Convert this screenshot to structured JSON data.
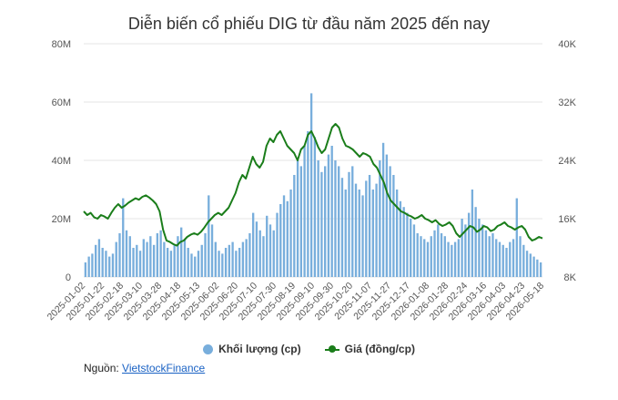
{
  "colors": {
    "volume": "#78aedc",
    "price": "#1a7d1a",
    "grid": "#e6e6e6",
    "axis_text": "#555555",
    "link": "#1a62c4"
  },
  "chart_data": {
    "type": "bar+line",
    "title": "Diễn biến cổ phiếu DIG từ đầu năm 2025 đến nay",
    "left_axis": {
      "ticks": [
        "0",
        "20M",
        "40M",
        "60M",
        "80M"
      ],
      "range": [
        0,
        80000000
      ]
    },
    "right_axis": {
      "ticks": [
        "8K",
        "16K",
        "24K",
        "32K",
        "40K"
      ],
      "range": [
        8000,
        40000
      ]
    },
    "x_tick_labels": [
      "2025-01-02",
      "2025-01-22",
      "2025-02-18",
      "2025-03-10",
      "2025-03-28",
      "2025-04-18",
      "2025-05-13",
      "2025-06-02",
      "2025-06-20",
      "2025-07-10",
      "2025-07-30",
      "2025-08-19",
      "2025-09-10",
      "2025-09-30",
      "2025-10-20",
      "2025-11-07",
      "2025-11-27",
      "2025-12-17",
      "2026-01-08",
      "2026-01-28",
      "2026-02-24",
      "2026-03-16",
      "2026-04-03",
      "2026-04-23",
      "2026-05-18"
    ],
    "legend": [
      "Khối lượng (cp)",
      "Giá (đồng/cp)"
    ],
    "legend_position": "bottom",
    "grid": true,
    "series": [
      {
        "name": "Khối lượng (cp)",
        "type": "bar",
        "axis": "left",
        "values": [
          5000000,
          7000000,
          8000000,
          11000000,
          13000000,
          10000000,
          9000000,
          7000000,
          8000000,
          12000000,
          15000000,
          27000000,
          16000000,
          14000000,
          10000000,
          11000000,
          9000000,
          13000000,
          12000000,
          14000000,
          11000000,
          15000000,
          16000000,
          12000000,
          10000000,
          9000000,
          11000000,
          14000000,
          17000000,
          13000000,
          10000000,
          8000000,
          7000000,
          9000000,
          11000000,
          15000000,
          28000000,
          18000000,
          12000000,
          9000000,
          8000000,
          10000000,
          11000000,
          12000000,
          9000000,
          10000000,
          12000000,
          13000000,
          15000000,
          22000000,
          19000000,
          16000000,
          14000000,
          21000000,
          18000000,
          16000000,
          22000000,
          25000000,
          28000000,
          26000000,
          30000000,
          35000000,
          40000000,
          38000000,
          45000000,
          50000000,
          63000000,
          48000000,
          40000000,
          36000000,
          38000000,
          42000000,
          45000000,
          40000000,
          38000000,
          34000000,
          30000000,
          36000000,
          38000000,
          32000000,
          30000000,
          28000000,
          33000000,
          35000000,
          30000000,
          32000000,
          40000000,
          46000000,
          42000000,
          38000000,
          35000000,
          30000000,
          26000000,
          24000000,
          22000000,
          20000000,
          18000000,
          15000000,
          14000000,
          13000000,
          12000000,
          14000000,
          16000000,
          18000000,
          15000000,
          14000000,
          12000000,
          11000000,
          12000000,
          13000000,
          20000000,
          18000000,
          22000000,
          30000000,
          24000000,
          20000000,
          18000000,
          16000000,
          14000000,
          15000000,
          13000000,
          12000000,
          11000000,
          10000000,
          12000000,
          13000000,
          27000000,
          14000000,
          11000000,
          9000000,
          8000000,
          7000000,
          6000000,
          5000000
        ],
        "x_start": "2025-01-02",
        "x_end": "2026-05-29",
        "count": 134
      },
      {
        "name": "Giá (đồng/cp)",
        "type": "line",
        "axis": "right",
        "values": [
          17000,
          16500,
          16800,
          16200,
          16000,
          16500,
          16300,
          16000,
          16800,
          17500,
          18000,
          17500,
          17800,
          18200,
          18500,
          18800,
          18600,
          19000,
          19200,
          18900,
          18500,
          18000,
          17000,
          14500,
          13000,
          12800,
          12500,
          12300,
          12800,
          13000,
          13500,
          13800,
          14000,
          13800,
          14200,
          14800,
          15500,
          16000,
          16500,
          16800,
          16500,
          17000,
          17500,
          18500,
          19500,
          21000,
          22000,
          21500,
          23000,
          24500,
          23500,
          23000,
          23800,
          26000,
          27000,
          26500,
          27500,
          28000,
          27000,
          26000,
          25500,
          25000,
          24000,
          25500,
          26000,
          27500,
          28000,
          27000,
          25800,
          25000,
          25500,
          27000,
          28500,
          29000,
          28500,
          27000,
          26000,
          25800,
          25500,
          25000,
          24500,
          25000,
          24800,
          24500,
          23500,
          23000,
          22000,
          21000,
          19500,
          18500,
          18000,
          17500,
          17000,
          16800,
          16500,
          16300,
          16000,
          16200,
          16500,
          16000,
          15800,
          15500,
          15800,
          15300,
          15000,
          15200,
          15500,
          15000,
          14000,
          13500,
          14000,
          14500,
          15000,
          14800,
          14200,
          14500,
          15000,
          14800,
          14300,
          14500,
          15000,
          15200,
          15500,
          15000,
          14800,
          14500,
          14800,
          15000,
          14500,
          13500,
          13000,
          13200,
          13500,
          13300
        ]
      }
    ]
  },
  "source": {
    "label": "Nguồn:",
    "link_text": "VietstockFinance"
  }
}
